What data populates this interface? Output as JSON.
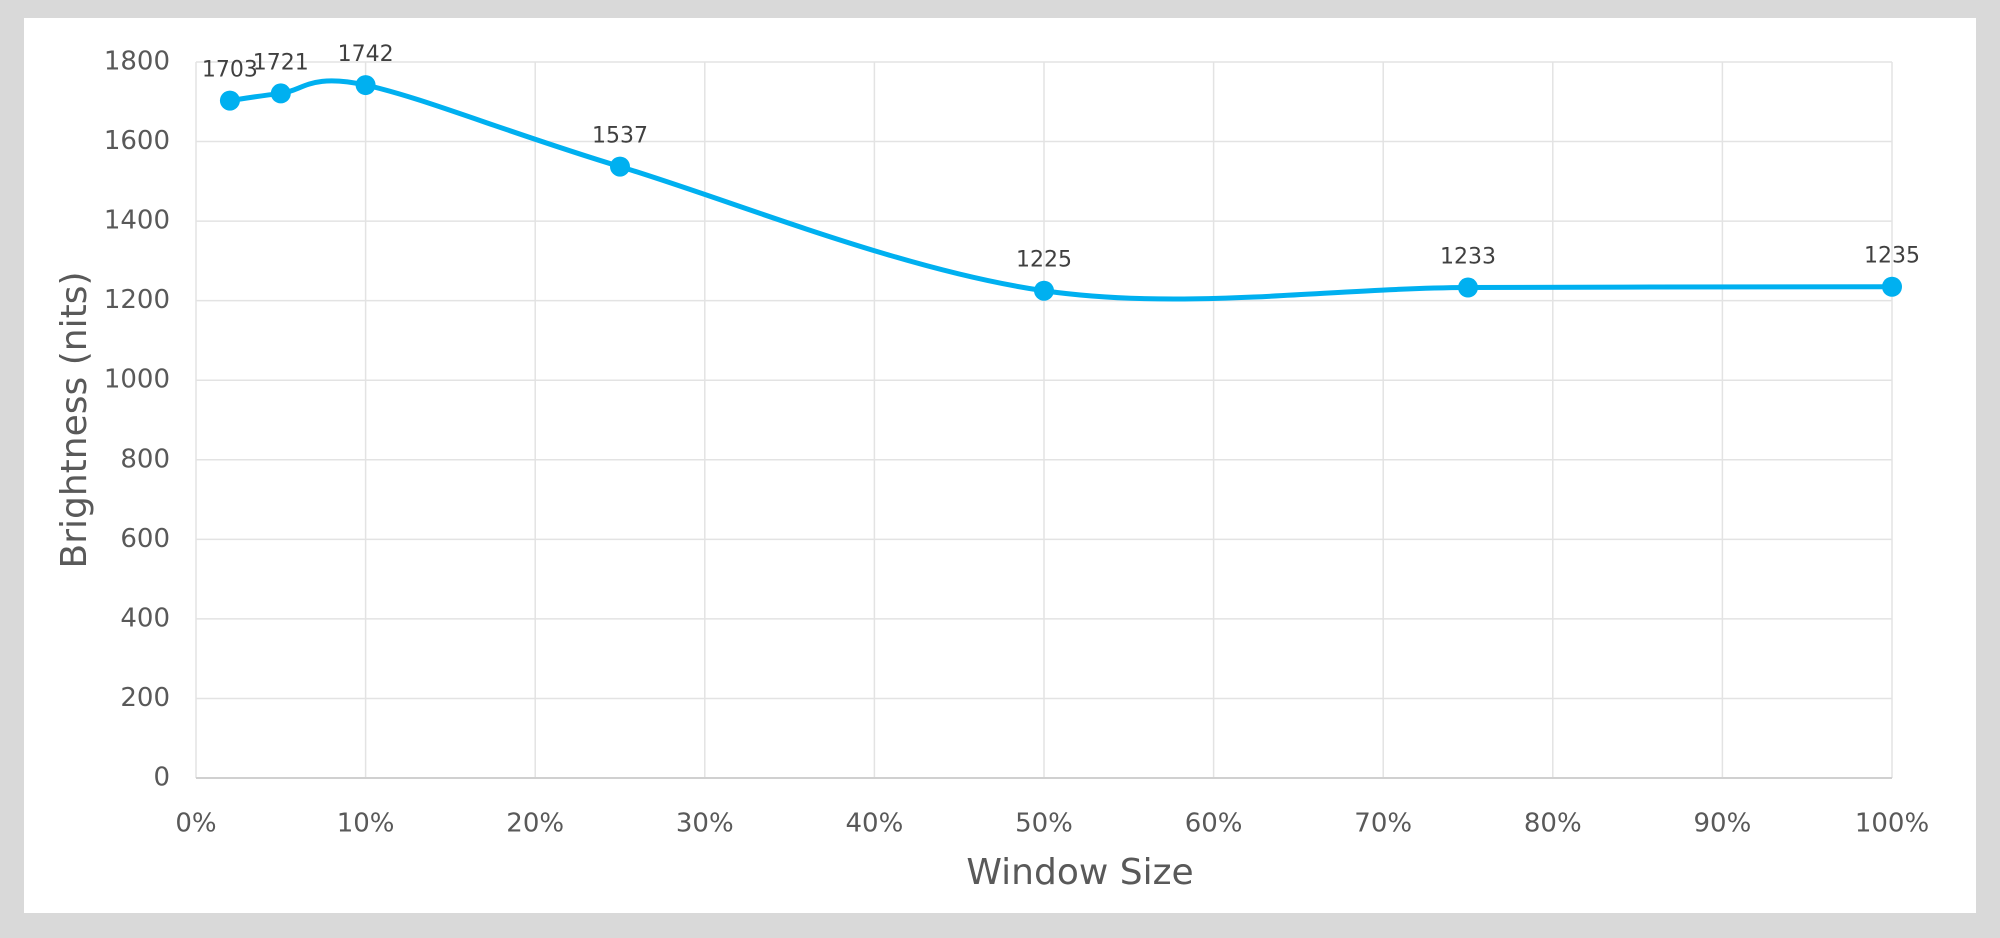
{
  "chart_data": {
    "type": "line",
    "x_label": "Window Size",
    "y_label": "Brightness (nits)",
    "x": [
      2,
      5,
      10,
      25,
      50,
      75,
      100
    ],
    "values": [
      1703,
      1721,
      1742,
      1537,
      1225,
      1233,
      1235
    ],
    "color": "#00b0f0",
    "smooth": true,
    "grid": true,
    "data_labels": true,
    "xlim": [
      0,
      100
    ],
    "xticks": [
      {
        "value": 0,
        "label": "0%"
      },
      {
        "value": 10,
        "label": "10%"
      },
      {
        "value": 20,
        "label": "20%"
      },
      {
        "value": 30,
        "label": "30%"
      },
      {
        "value": 40,
        "label": "40%"
      },
      {
        "value": 50,
        "label": "50%"
      },
      {
        "value": 60,
        "label": "60%"
      },
      {
        "value": 70,
        "label": "70%"
      },
      {
        "value": 80,
        "label": "80%"
      },
      {
        "value": 90,
        "label": "90%"
      },
      {
        "value": 100,
        "label": "100%"
      }
    ],
    "ylim": [
      0,
      1800
    ],
    "yticks": [
      0,
      200,
      400,
      600,
      800,
      1000,
      1200,
      1400,
      1600,
      1800
    ]
  }
}
